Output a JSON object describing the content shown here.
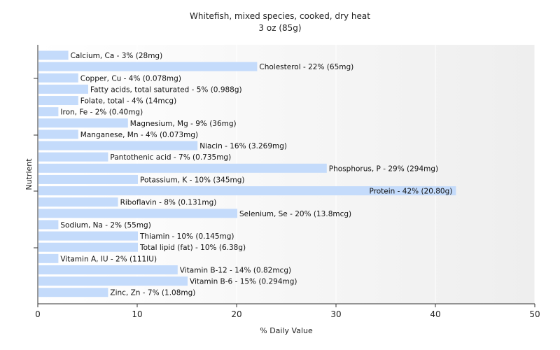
{
  "chart_data": {
    "type": "bar",
    "orientation": "horizontal",
    "title": "Whitefish, mixed species, cooked, dry heat",
    "subtitle": "3 oz (85g)",
    "xlabel": "% Daily Value",
    "ylabel": "Nutrient",
    "xlim": [
      0,
      50
    ],
    "xticks": [
      "0",
      "10",
      "20",
      "30",
      "40",
      "50"
    ],
    "bar_color": "#c4dbfb",
    "grid": true,
    "categories": [
      "Calcium, Ca",
      "Cholesterol",
      "Copper, Cu",
      "Fatty acids, total saturated",
      "Folate, total",
      "Iron, Fe",
      "Magnesium, Mg",
      "Manganese, Mn",
      "Niacin",
      "Pantothenic acid",
      "Phosphorus, P",
      "Potassium, K",
      "Protein",
      "Riboflavin",
      "Selenium, Se",
      "Sodium, Na",
      "Thiamin",
      "Total lipid (fat)",
      "Vitamin A, IU",
      "Vitamin B-12",
      "Vitamin B-6",
      "Zinc, Zn"
    ],
    "values": [
      3,
      22,
      4,
      5,
      4,
      2,
      9,
      4,
      16,
      7,
      29,
      10,
      42,
      8,
      20,
      2,
      10,
      10,
      2,
      14,
      15,
      7
    ],
    "labels": [
      "Calcium, Ca - 3% (28mg)",
      "Cholesterol - 22% (65mg)",
      "Copper, Cu - 4% (0.078mg)",
      "Fatty acids, total saturated - 5% (0.988g)",
      "Folate, total - 4% (14mcg)",
      "Iron, Fe - 2% (0.40mg)",
      "Magnesium, Mg - 9% (36mg)",
      "Manganese, Mn - 4% (0.073mg)",
      "Niacin - 16% (3.269mg)",
      "Pantothenic acid - 7% (0.735mg)",
      "Phosphorus, P - 29% (294mg)",
      "Potassium, K - 10% (345mg)",
      "Protein - 42% (20.80g)",
      "Riboflavin - 8% (0.131mg)",
      "Selenium, Se - 20% (13.8mcg)",
      "Sodium, Na - 2% (55mg)",
      "Thiamin - 10% (0.145mg)",
      "Total lipid (fat) - 10% (6.38g)",
      "Vitamin A, IU - 2% (111IU)",
      "Vitamin B-12 - 14% (0.82mcg)",
      "Vitamin B-6 - 15% (0.294mg)",
      "Zinc, Zn - 7% (1.08mg)"
    ]
  }
}
